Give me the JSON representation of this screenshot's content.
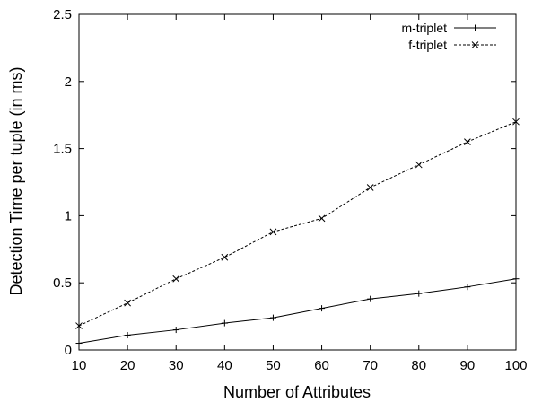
{
  "chart_data": {
    "type": "line",
    "title": "",
    "xlabel": "Number of Attributes",
    "ylabel": "Detection Time per tuple (in ms)",
    "x": [
      10,
      20,
      30,
      40,
      50,
      60,
      70,
      80,
      90,
      100
    ],
    "xlim": [
      10,
      100
    ],
    "ylim": [
      0,
      2.5
    ],
    "xticks": [
      10,
      20,
      30,
      40,
      50,
      60,
      70,
      80,
      90,
      100
    ],
    "xtick_labels": [
      "10",
      "20",
      "30",
      "40",
      "50",
      "60",
      "70",
      "80",
      "90",
      "100"
    ],
    "yticks": [
      0,
      0.5,
      1,
      1.5,
      2,
      2.5
    ],
    "ytick_labels": [
      "0",
      "0.5",
      "1",
      "1.5",
      "2",
      "2.5"
    ],
    "grid": false,
    "legend_position": "top-right",
    "series": [
      {
        "name": "m-triplet",
        "line_style": "solid",
        "marker": "plus",
        "values": [
          0.05,
          0.11,
          0.15,
          0.2,
          0.24,
          0.31,
          0.38,
          0.42,
          0.47,
          0.53
        ]
      },
      {
        "name": "f-triplet",
        "line_style": "dashed",
        "marker": "cross",
        "values": [
          0.18,
          0.35,
          0.53,
          0.69,
          0.88,
          0.98,
          1.21,
          1.38,
          1.55,
          1.7
        ]
      }
    ]
  }
}
